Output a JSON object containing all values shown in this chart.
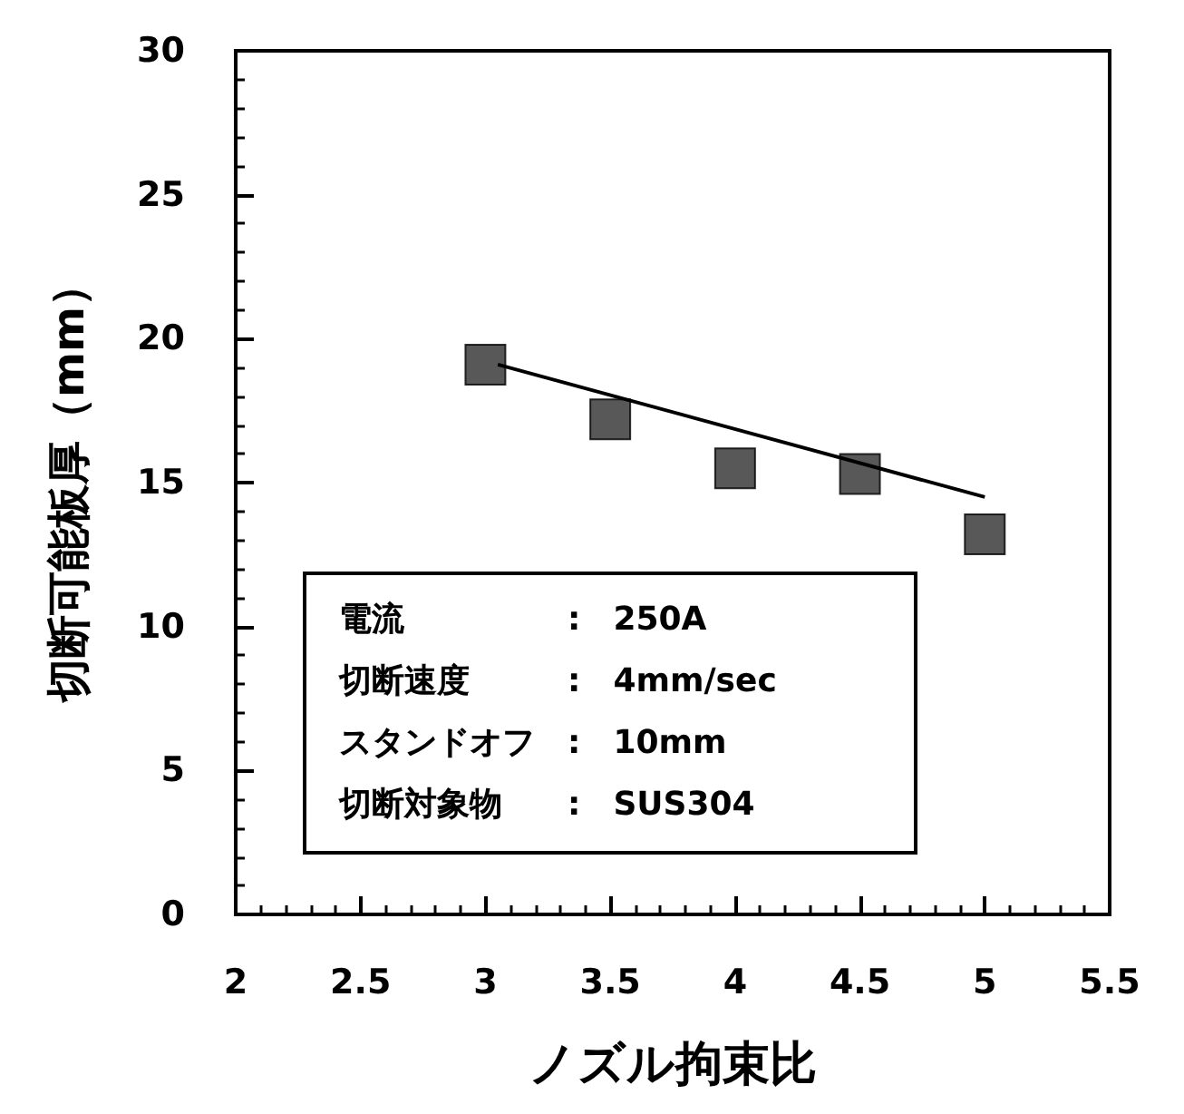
{
  "chart_data": {
    "type": "scatter",
    "xlabel": "ノズル拘束比",
    "ylabel": "切断可能板厚（mm）",
    "x": [
      3,
      3.5,
      4,
      4.5,
      5
    ],
    "series": [
      {
        "color": "#2e2e2e",
        "marker": "square",
        "values": [
          19.1,
          17.2,
          15.5,
          15.3,
          13.2
        ]
      },
      {
        "type": "line",
        "color": "#000000",
        "x": [
          3.05,
          5
        ],
        "values": [
          19.1,
          14.5
        ]
      }
    ],
    "grid": false,
    "xlim": [
      2,
      5.5
    ],
    "xticks": [
      2,
      2.5,
      3,
      3.5,
      4,
      4.5,
      5,
      5.5
    ],
    "ylim": [
      0,
      30
    ],
    "yticks": [
      0,
      5,
      10,
      15,
      20,
      25,
      30
    ],
    "annotations": [
      "電流　　　　　:　250A",
      "切断速度　　　:　4mm/sec",
      "スタンドオフ　:　10mm",
      "切断対象物　　:　SUS304"
    ]
  }
}
